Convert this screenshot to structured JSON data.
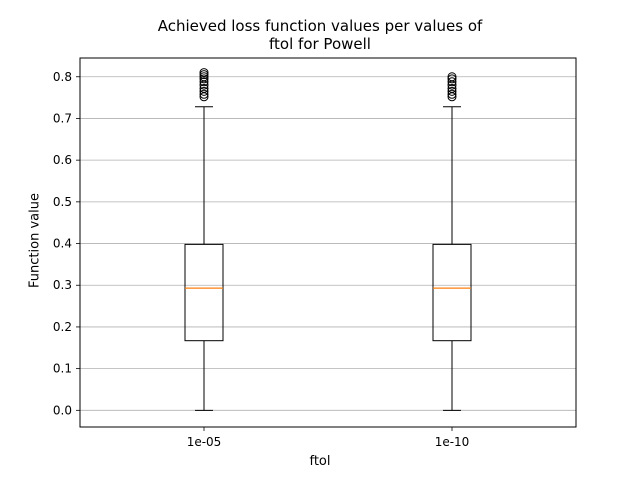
{
  "chart_data": {
    "type": "boxplot",
    "title_lines": [
      "Achieved loss function values per values of",
      "ftol for Powell"
    ],
    "xlabel": "ftol",
    "ylabel": "Function value",
    "categories": [
      "1e-05",
      "1e-10"
    ],
    "ylim": [
      -0.04,
      0.845
    ],
    "yticks": [
      0.0,
      0.1,
      0.2,
      0.3,
      0.4,
      0.5,
      0.6,
      0.7,
      0.8
    ],
    "ytick_labels": [
      "0.0",
      "0.1",
      "0.2",
      "0.3",
      "0.4",
      "0.5",
      "0.6",
      "0.7",
      "0.8"
    ],
    "grid": "y",
    "boxes": [
      {
        "category": "1e-05",
        "whisker_low": 0.0,
        "q1": 0.167,
        "median": 0.293,
        "q3": 0.398,
        "whisker_high": 0.728,
        "fliers": [
          0.752,
          0.758,
          0.765,
          0.772,
          0.78,
          0.788,
          0.795,
          0.8,
          0.805,
          0.81
        ]
      },
      {
        "category": "1e-10",
        "whisker_low": 0.0,
        "q1": 0.167,
        "median": 0.293,
        "q3": 0.398,
        "whisker_high": 0.728,
        "fliers": [
          0.752,
          0.758,
          0.765,
          0.772,
          0.78,
          0.788,
          0.795,
          0.8
        ]
      }
    ],
    "colors": {
      "box": "#000000",
      "median": "#ff7f0e",
      "grid": "#b0b0b0",
      "flier": "#000000"
    }
  }
}
